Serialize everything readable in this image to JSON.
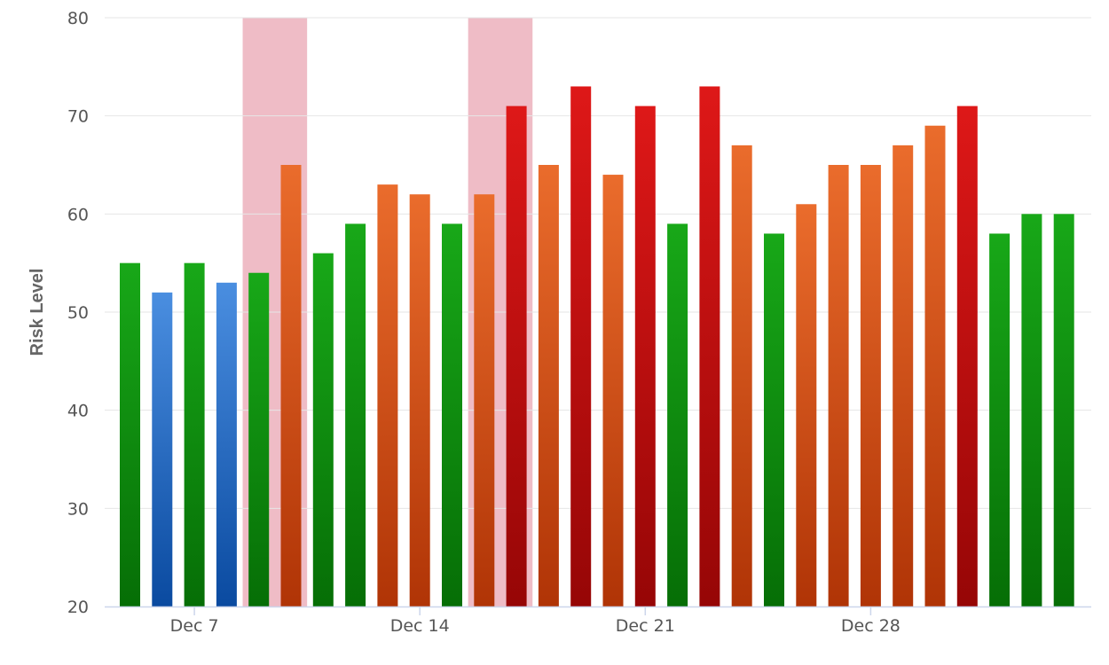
{
  "colors": {
    "green": [
      "#18a818",
      "#066e06"
    ],
    "blue": [
      "#4a8ee0",
      "#0a4aa0"
    ],
    "orange": [
      "#ea6c2c",
      "#b03406"
    ],
    "red": [
      "#de1818",
      "#960606"
    ],
    "highlight": "#efbcc6",
    "grid": "#e6e6e6",
    "axis": "#ccd6eb"
  },
  "chart_data": {
    "type": "bar",
    "ylabel": "Risk Level",
    "xlabel": "",
    "ylim": [
      20,
      80
    ],
    "yticks": [
      20,
      30,
      40,
      50,
      60,
      70,
      80
    ],
    "grid": true,
    "legend": "none",
    "x_dates": [
      "Dec 5",
      "Dec 6",
      "Dec 7",
      "Dec 8",
      "Dec 9",
      "Dec 10",
      "Dec 11",
      "Dec 12",
      "Dec 13",
      "Dec 14",
      "Dec 15",
      "Dec 16",
      "Dec 17",
      "Dec 18",
      "Dec 19",
      "Dec 20",
      "Dec 21",
      "Dec 22",
      "Dec 23",
      "Dec 24",
      "Dec 25",
      "Dec 26",
      "Dec 27",
      "Dec 28",
      "Dec 29",
      "Dec 30",
      "Dec 31",
      "Jan 1",
      "Jan 2",
      "Jan 3"
    ],
    "xtick_labels": [
      "Dec 7",
      "Dec 14",
      "Dec 21",
      "Dec 28"
    ],
    "highlight_bands": [
      [
        "Dec 9",
        "Dec 10"
      ],
      [
        "Dec 16",
        "Dec 17"
      ]
    ],
    "values": [
      55,
      52,
      55,
      53,
      54,
      65,
      56,
      59,
      63,
      62,
      59,
      62,
      71,
      65,
      73,
      64,
      71,
      59,
      73,
      67,
      58,
      61,
      65,
      65,
      67,
      69,
      71,
      58,
      60,
      60
    ],
    "bar_colors": [
      "green",
      "blue",
      "green",
      "blue",
      "green",
      "orange",
      "green",
      "green",
      "orange",
      "orange",
      "green",
      "orange",
      "red",
      "orange",
      "red",
      "orange",
      "red",
      "green",
      "red",
      "orange",
      "green",
      "orange",
      "orange",
      "orange",
      "orange",
      "orange",
      "red",
      "green",
      "green",
      "green"
    ]
  }
}
